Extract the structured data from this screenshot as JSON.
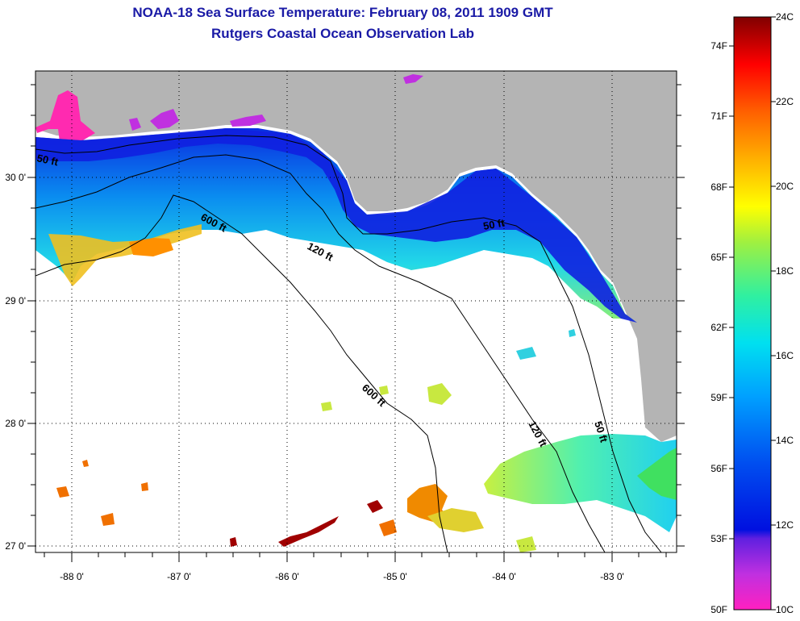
{
  "title": {
    "line1": "NOAA-18 Sea Surface Temperature:  February 08, 2011 1909 GMT",
    "line2": "Rutgers Coastal Ocean Observation Lab"
  },
  "map": {
    "longitude_labels": [
      "-88 0'",
      "-87 0'",
      "-86 0'",
      "-85 0'",
      "-84 0'",
      "-83 0'"
    ],
    "latitude_labels": [
      "30 0'",
      "29 0'",
      "28 0'",
      "27 0'"
    ],
    "contour_labels": [
      "50 ft",
      "600 ft",
      "120 ft",
      "50 ft",
      "600 ft",
      "120 ft",
      "50 ft"
    ],
    "land_color": "#b4b4b4",
    "no_data_color": "#ffffff"
  },
  "colorbar": {
    "fahrenheit_labels": [
      "74F",
      "71F",
      "68F",
      "65F",
      "62F",
      "59F",
      "56F",
      "53F",
      "50F"
    ],
    "celsius_labels": [
      "24C",
      "22C",
      "20C",
      "18C",
      "16C",
      "14C",
      "12C",
      "10C"
    ],
    "colors": [
      "#ff20c0",
      "#c030e0",
      "#6020e0",
      "#0010e0",
      "#0050f0",
      "#00a0ff",
      "#00e0f0",
      "#30f0a0",
      "#a0f040",
      "#ffff00",
      "#ffb000",
      "#ff6000",
      "#ff0000",
      "#c00000",
      "#800000"
    ]
  }
}
